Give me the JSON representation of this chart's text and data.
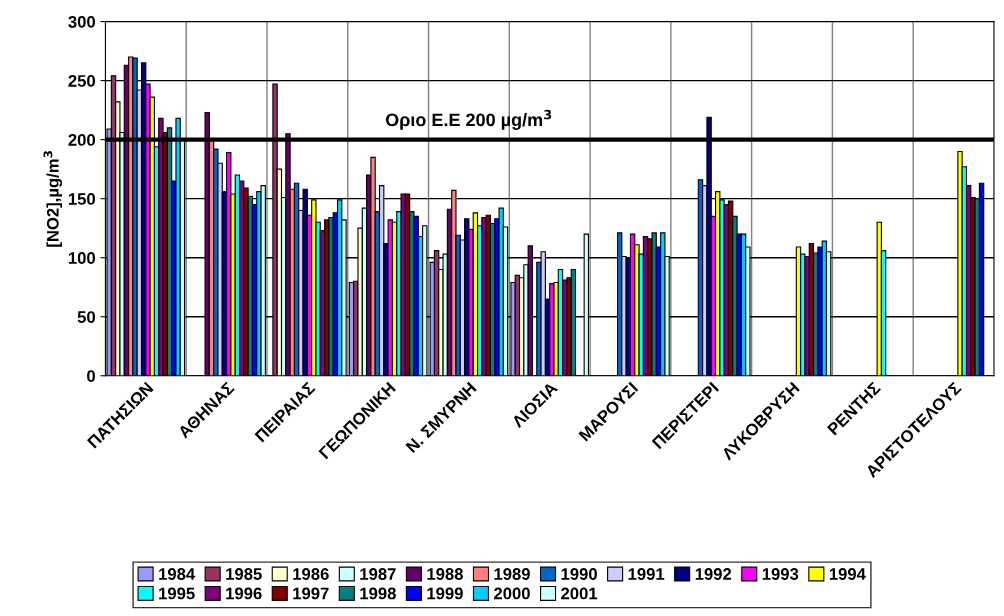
{
  "chart_data": {
    "type": "bar",
    "ylabel": "[NO2],µg/m$^{3}$",
    "categories": [
      "ΠΑΤΗΣΙΩΝ",
      "ΑΘΗΝΑΣ",
      "ΠΕΙΡΑΙΑΣ",
      "ΓΕΩΠΟΝΙΚΗ",
      "Ν. ΣΜΥΡΝΗ",
      "ΛΙΟΣΙΑ",
      "ΜΑΡΟΥΣΙ",
      "ΠΕΡΙΣΤΕΡΙ",
      "ΛΥΚΟΒΡΥΣΗ",
      "ΡΕΝΤΗΣ",
      "ΑΡΙΣΤΟΤΕΛΟΥΣ"
    ],
    "ylim": [
      0,
      300
    ],
    "yticks": [
      0,
      50,
      100,
      150,
      200,
      250,
      300
    ],
    "grid": true,
    "legend": "bottom",
    "ref_lines": [
      {
        "axis": "y",
        "value": 200,
        "label": "Οριο Ε.Ε 200 µg/m$^{3}$",
        "color": "#000000"
      }
    ],
    "series": [
      {
        "name": "1984",
        "color": "#9999ff",
        "values": [
          209,
          null,
          null,
          79,
          96,
          79,
          null,
          null,
          null,
          null,
          null
        ]
      },
      {
        "name": "1985",
        "color": "#993366",
        "values": [
          254,
          null,
          247,
          80,
          106,
          85,
          null,
          null,
          null,
          null,
          null
        ]
      },
      {
        "name": "1986",
        "color": "#ffffcc",
        "values": [
          232,
          null,
          175,
          125,
          90,
          83,
          null,
          null,
          null,
          null,
          null
        ]
      },
      {
        "name": "1987",
        "color": "#ccffff",
        "values": [
          206,
          null,
          151,
          142,
          103,
          94,
          null,
          null,
          null,
          null,
          null
        ]
      },
      {
        "name": "1988",
        "color": "#660066",
        "values": [
          263,
          223,
          205,
          170,
          141,
          110,
          null,
          null,
          null,
          null,
          null
        ]
      },
      {
        "name": "1989",
        "color": "#ff8080",
        "values": [
          270,
          199,
          158,
          185,
          157,
          null,
          null,
          null,
          null,
          null,
          null
        ]
      },
      {
        "name": "1990",
        "color": "#0066cc",
        "values": [
          269,
          192,
          163,
          139,
          119,
          96,
          121,
          166,
          null,
          null,
          null
        ]
      },
      {
        "name": "1991",
        "color": "#ccccff",
        "values": [
          242,
          180,
          140,
          161,
          115,
          105,
          101,
          161,
          null,
          null,
          null
        ]
      },
      {
        "name": "1992",
        "color": "#000080",
        "values": [
          265,
          156,
          158,
          112,
          133,
          65,
          100,
          219,
          null,
          null,
          null
        ]
      },
      {
        "name": "1993",
        "color": "#ff00ff",
        "values": [
          247,
          189,
          136,
          132,
          124,
          78,
          120,
          135,
          null,
          null,
          null
        ]
      },
      {
        "name": "1994",
        "color": "#ffff00",
        "values": [
          236,
          154,
          149,
          130,
          138,
          79,
          111,
          156,
          109,
          130,
          190
        ]
      },
      {
        "name": "1995",
        "color": "#00ffff",
        "values": [
          194,
          170,
          130,
          139,
          127,
          90,
          103,
          149,
          103,
          106,
          177
        ]
      },
      {
        "name": "1996",
        "color": "#800080",
        "values": [
          218,
          165,
          123,
          154,
          134,
          81,
          118,
          145,
          101,
          null,
          161
        ]
      },
      {
        "name": "1997",
        "color": "#800000",
        "values": [
          206,
          159,
          132,
          154,
          136,
          83,
          116,
          148,
          112,
          null,
          151
        ]
      },
      {
        "name": "1998",
        "color": "#008080",
        "values": [
          210,
          152,
          134,
          139,
          129,
          90,
          121,
          135,
          104,
          null,
          150
        ]
      },
      {
        "name": "1999",
        "color": "#0000ff",
        "values": [
          165,
          145,
          138,
          135,
          133,
          null,
          109,
          120,
          109,
          null,
          163
        ]
      },
      {
        "name": "2000",
        "color": "#00ccff",
        "values": [
          218,
          156,
          149,
          118,
          142,
          null,
          121,
          120,
          114,
          null,
          null
        ]
      },
      {
        "name": "2001",
        "color": "#ccffff",
        "values": [
          201,
          161,
          132,
          127,
          126,
          120,
          101,
          109,
          105,
          null,
          null
        ]
      }
    ]
  }
}
